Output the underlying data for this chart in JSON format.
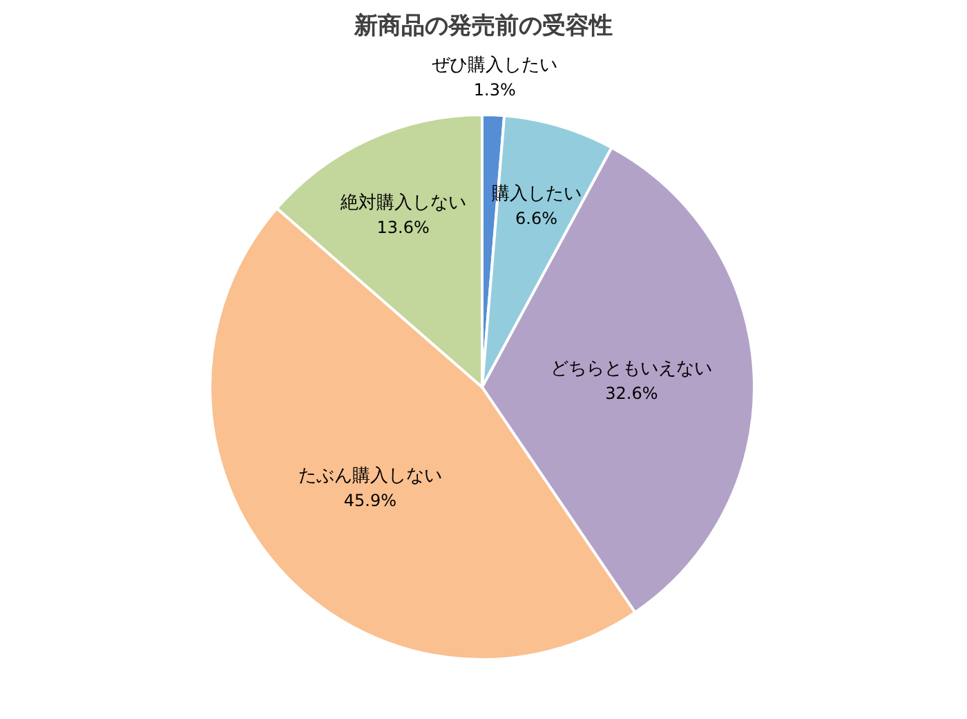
{
  "chart_data": {
    "type": "pie",
    "title": "新商品の発売前の受容性",
    "categories": [
      "ぜひ購入したい",
      "購入したい",
      "どちらともいえない",
      "たぶん購入しない",
      "絶対購入しない"
    ],
    "values": [
      1.3,
      6.6,
      32.6,
      45.9,
      13.6
    ],
    "value_labels": [
      "1.3%",
      "6.6%",
      "32.6%",
      "45.9%",
      "13.6%"
    ],
    "colors": [
      "#558ed5",
      "#93cddd",
      "#b3a2c7",
      "#fac090",
      "#c3d69b"
    ]
  }
}
